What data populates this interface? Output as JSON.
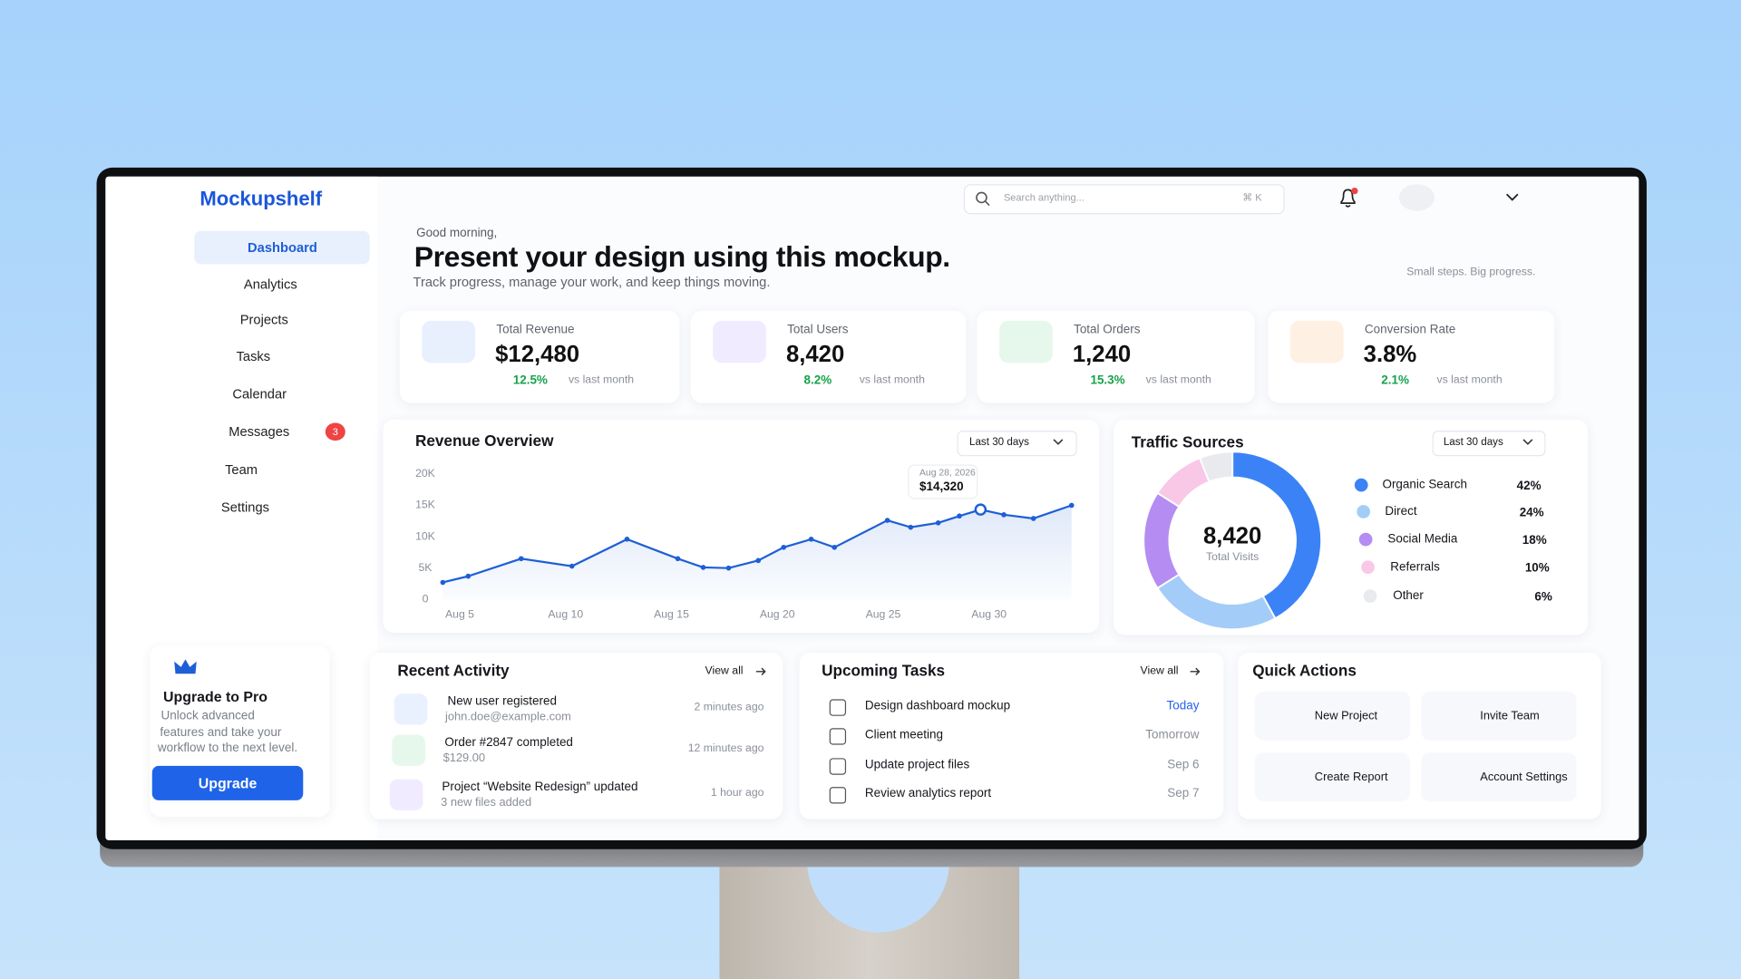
{
  "brand": "Mockupshelf",
  "search": {
    "placeholder": "Search anything...",
    "shortcut": "⌘ K"
  },
  "nav": [
    {
      "label": "Dashboard",
      "active": true
    },
    {
      "label": "Analytics"
    },
    {
      "label": "Projects"
    },
    {
      "label": "Tasks"
    },
    {
      "label": "Calendar"
    },
    {
      "label": "Messages",
      "badge": 3
    },
    {
      "label": "Team"
    },
    {
      "label": "Settings"
    }
  ],
  "upgrade": {
    "title": "Upgrade to Pro",
    "lines": [
      "Unlock advanced",
      "features and take your",
      "workflow to the next level."
    ],
    "button": "Upgrade"
  },
  "header": {
    "greeting": "Good morning,",
    "title": "Present your design using this mockup.",
    "subtitle": "Track progress, manage your work, and keep things moving.",
    "tagline": "Small steps. Big progress."
  },
  "stats": [
    {
      "label": "Total Revenue",
      "value": "$12,480",
      "change": "12.5%",
      "note": "vs last month"
    },
    {
      "label": "Total Users",
      "value": "8,420",
      "change": "8.2%",
      "note": "vs last month"
    },
    {
      "label": "Total Orders",
      "value": "1,240",
      "change": "15.3%",
      "note": "vs last month"
    },
    {
      "label": "Conversion Rate",
      "value": "3.8%",
      "change": "2.1%",
      "note": "vs last month"
    }
  ],
  "revenue_overview": {
    "type": "line",
    "title": "Revenue Overview",
    "range": "Last 30 days",
    "x": [
      4.2,
      5.4,
      7.9,
      10.3,
      12.9,
      15.3,
      16.5,
      17.7,
      19.1,
      20.3,
      21.6,
      22.7,
      25.2,
      26.3,
      27.6,
      28.6,
      29.6,
      30.7,
      32.1,
      33.9
    ],
    "values": [
      2700,
      3700,
      6500,
      5300,
      9600,
      6500,
      5100,
      5000,
      6200,
      8300,
      9600,
      8300,
      12600,
      11500,
      12200,
      13300,
      14320,
      13500,
      12900,
      15000
    ],
    "color": "#1d5fd6",
    "xlim": [
      4,
      34
    ],
    "xticks": [
      {
        "value": 5,
        "label": "Aug 5"
      },
      {
        "value": 10,
        "label": "Aug 10"
      },
      {
        "value": 15,
        "label": "Aug 15"
      },
      {
        "value": 20,
        "label": "Aug 20"
      },
      {
        "value": 25,
        "label": "Aug 25"
      },
      {
        "value": 30,
        "label": "Aug 30"
      }
    ],
    "ylim": [
      0,
      20000
    ],
    "yticks": [
      0,
      {
        "value": 5000,
        "label": "5K"
      },
      {
        "value": 10000,
        "label": "10K"
      },
      {
        "value": 15000,
        "label": "15K"
      },
      {
        "value": 20000,
        "label": "20K"
      }
    ],
    "tooltip": {
      "label": "Aug 28, 2026",
      "value": 14320,
      "value_label": "$14,320"
    }
  },
  "traffic_sources": {
    "type": "donut",
    "title": "Traffic Sources",
    "range": "Last 30 days",
    "total": "8,420",
    "total_label": "Total Visits",
    "categories": [
      "Organic Search",
      "Direct",
      "Social Media",
      "Referrals",
      "Other"
    ],
    "values": [
      42,
      24,
      18,
      10,
      6
    ],
    "value_labels": [
      "42%",
      "24%",
      "18%",
      "10%",
      "6%"
    ],
    "colors": [
      "#3b82f6",
      "#a3cdf8",
      "#b58cf2",
      "#f8c8e6",
      "#e8eaee"
    ]
  },
  "recent_activity": {
    "title": "Recent Activity",
    "link": "View all",
    "items": [
      {
        "title": "New user registered",
        "detail": "john.doe@example.com",
        "time": "2 minutes ago"
      },
      {
        "title": "Order #2847 completed",
        "detail": "$129.00",
        "time": "12 minutes ago"
      },
      {
        "title": "Project “Website Redesign” updated",
        "detail": "3 new files added",
        "time": "1 hour ago"
      }
    ]
  },
  "upcoming_tasks": {
    "title": "Upcoming Tasks",
    "link": "View all",
    "items": [
      {
        "title": "Design dashboard mockup",
        "due": "Today",
        "color": "#2563eb"
      },
      {
        "title": "Client meeting",
        "due": "Tomorrow",
        "color": "#8a8f98"
      },
      {
        "title": "Update project files",
        "due": "Sep 6",
        "color": "#8a8f98"
      },
      {
        "title": "Review analytics report",
        "due": "Sep 7",
        "color": "#8a8f98"
      }
    ]
  },
  "quick_actions": {
    "title": "Quick Actions",
    "items": [
      "New Project",
      "Invite Team",
      "Create Report",
      "Account Settings"
    ]
  }
}
